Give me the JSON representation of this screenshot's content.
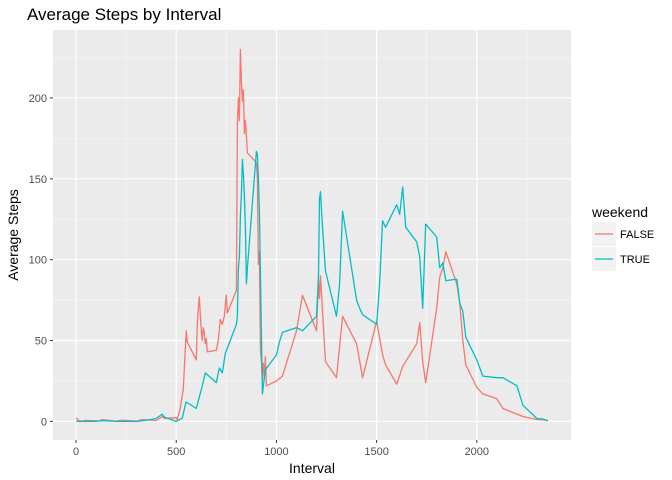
{
  "chart_data": {
    "type": "line",
    "title": "Average Steps by Interval",
    "xlabel": "Interval",
    "ylabel": "Average Steps",
    "xlim": [
      -115,
      2470
    ],
    "ylim": [
      -11.5,
      242
    ],
    "x_ticks": [
      0,
      500,
      1000,
      1500,
      2000
    ],
    "y_ticks": [
      0,
      50,
      100,
      150,
      200
    ],
    "x_tick_labels": [
      "0",
      "500",
      "1000",
      "1500",
      "2000"
    ],
    "y_tick_labels": [
      "0",
      "50",
      "100",
      "150",
      "200"
    ],
    "grid": true,
    "legend": {
      "title": "weekend",
      "position": "right"
    },
    "series": [
      {
        "name": "FALSE",
        "color": "#F8766D",
        "x": [
          0,
          15,
          30,
          45,
          100,
          115,
          130,
          200,
          230,
          300,
          330,
          400,
          430,
          440,
          500,
          505,
          520,
          535,
          545,
          550,
          555,
          600,
          605,
          610,
          615,
          620,
          625,
          630,
          635,
          640,
          645,
          650,
          655,
          700,
          710,
          720,
          730,
          740,
          750,
          755,
          800,
          805,
          810,
          815,
          820,
          825,
          830,
          835,
          840,
          845,
          850,
          855,
          900,
          905,
          910,
          915,
          920,
          925,
          930,
          935,
          940,
          945,
          950,
          1000,
          1030,
          1100,
          1130,
          1200,
          1210,
          1215,
          1220,
          1230,
          1245,
          1300,
          1330,
          1400,
          1430,
          1500,
          1530,
          1545,
          1600,
          1630,
          1700,
          1715,
          1730,
          1745,
          1800,
          1815,
          1830,
          1845,
          1900,
          1915,
          1930,
          1945,
          2000,
          2030,
          2100,
          2130,
          2200,
          2230,
          2300,
          2330,
          2355
        ],
        "y": [
          2.3,
          0.5,
          0.2,
          0.6,
          0.4,
          0.3,
          1.1,
          0.2,
          0.8,
          0.1,
          1.2,
          0.5,
          3.0,
          1.9,
          2.2,
          1.0,
          8.0,
          20.0,
          45.0,
          56.0,
          49.0,
          38.0,
          60.0,
          70.0,
          77.0,
          66.0,
          56.0,
          50.0,
          58.0,
          55.0,
          48.0,
          51.0,
          43.0,
          44.0,
          50.0,
          63.0,
          60.0,
          65.0,
          78.0,
          67.0,
          81.0,
          185.0,
          200.0,
          186.0,
          230.0,
          210.0,
          198.0,
          205.0,
          178.0,
          186.0,
          177.0,
          166.0,
          160.0,
          150.0,
          97.0,
          105.0,
          45.0,
          37.0,
          25.0,
          36.0,
          28.0,
          40.0,
          22.0,
          25.0,
          28.0,
          56.0,
          78.0,
          56.0,
          88.0,
          76.0,
          90.0,
          68.0,
          37.0,
          27.0,
          65.0,
          48.0,
          27.0,
          62.0,
          41.0,
          35.0,
          23.0,
          34.0,
          48.0,
          61.0,
          37.0,
          24.0,
          70.0,
          89.0,
          95.0,
          105.0,
          85.0,
          73.0,
          50.0,
          35.0,
          21.0,
          17.0,
          14.0,
          8.0,
          4.5,
          3.0,
          1.2,
          0.9,
          0.6
        ]
      },
      {
        "name": "TRUE",
        "color": "#00BFC4",
        "x": [
          0,
          15,
          30,
          100,
          130,
          200,
          300,
          330,
          400,
          430,
          440,
          500,
          530,
          545,
          550,
          600,
          615,
          630,
          645,
          700,
          715,
          730,
          745,
          800,
          805,
          810,
          815,
          820,
          825,
          830,
          835,
          840,
          845,
          850,
          855,
          900,
          905,
          910,
          915,
          930,
          945,
          1000,
          1015,
          1030,
          1100,
          1130,
          1200,
          1210,
          1215,
          1220,
          1230,
          1245,
          1300,
          1315,
          1330,
          1400,
          1415,
          1430,
          1500,
          1515,
          1530,
          1545,
          1600,
          1615,
          1630,
          1645,
          1700,
          1715,
          1730,
          1745,
          1800,
          1815,
          1830,
          1845,
          1900,
          1915,
          1930,
          1945,
          2000,
          2030,
          2100,
          2130,
          2200,
          2230,
          2300,
          2330,
          2355
        ],
        "y": [
          0.2,
          0.0,
          0.0,
          0.0,
          0.5,
          0.0,
          0.0,
          0.3,
          1.8,
          4.5,
          2.7,
          0.0,
          1.9,
          10.0,
          12.0,
          8.0,
          15.0,
          22.0,
          30.0,
          24.0,
          33.0,
          30.0,
          42.0,
          60.0,
          65.0,
          95.0,
          102.0,
          127.0,
          140.0,
          162.0,
          153.0,
          139.0,
          120.0,
          85.0,
          95.0,
          167.0,
          165.0,
          150.0,
          130.0,
          17.0,
          32.0,
          41.0,
          49.0,
          55.0,
          58.0,
          56.0,
          65.0,
          90.0,
          138.0,
          142.0,
          120.0,
          93.0,
          65.0,
          85.0,
          130.0,
          75.0,
          70.0,
          66.0,
          60.0,
          85.0,
          124.0,
          120.0,
          134.0,
          128.0,
          145.0,
          120.0,
          111.0,
          102.0,
          70.0,
          122.0,
          114.0,
          95.0,
          98.0,
          87.0,
          88.0,
          73.0,
          68.0,
          52.0,
          38.0,
          28.0,
          27.0,
          27.0,
          22.0,
          10.0,
          1.8,
          1.5,
          0.3
        ]
      }
    ]
  }
}
